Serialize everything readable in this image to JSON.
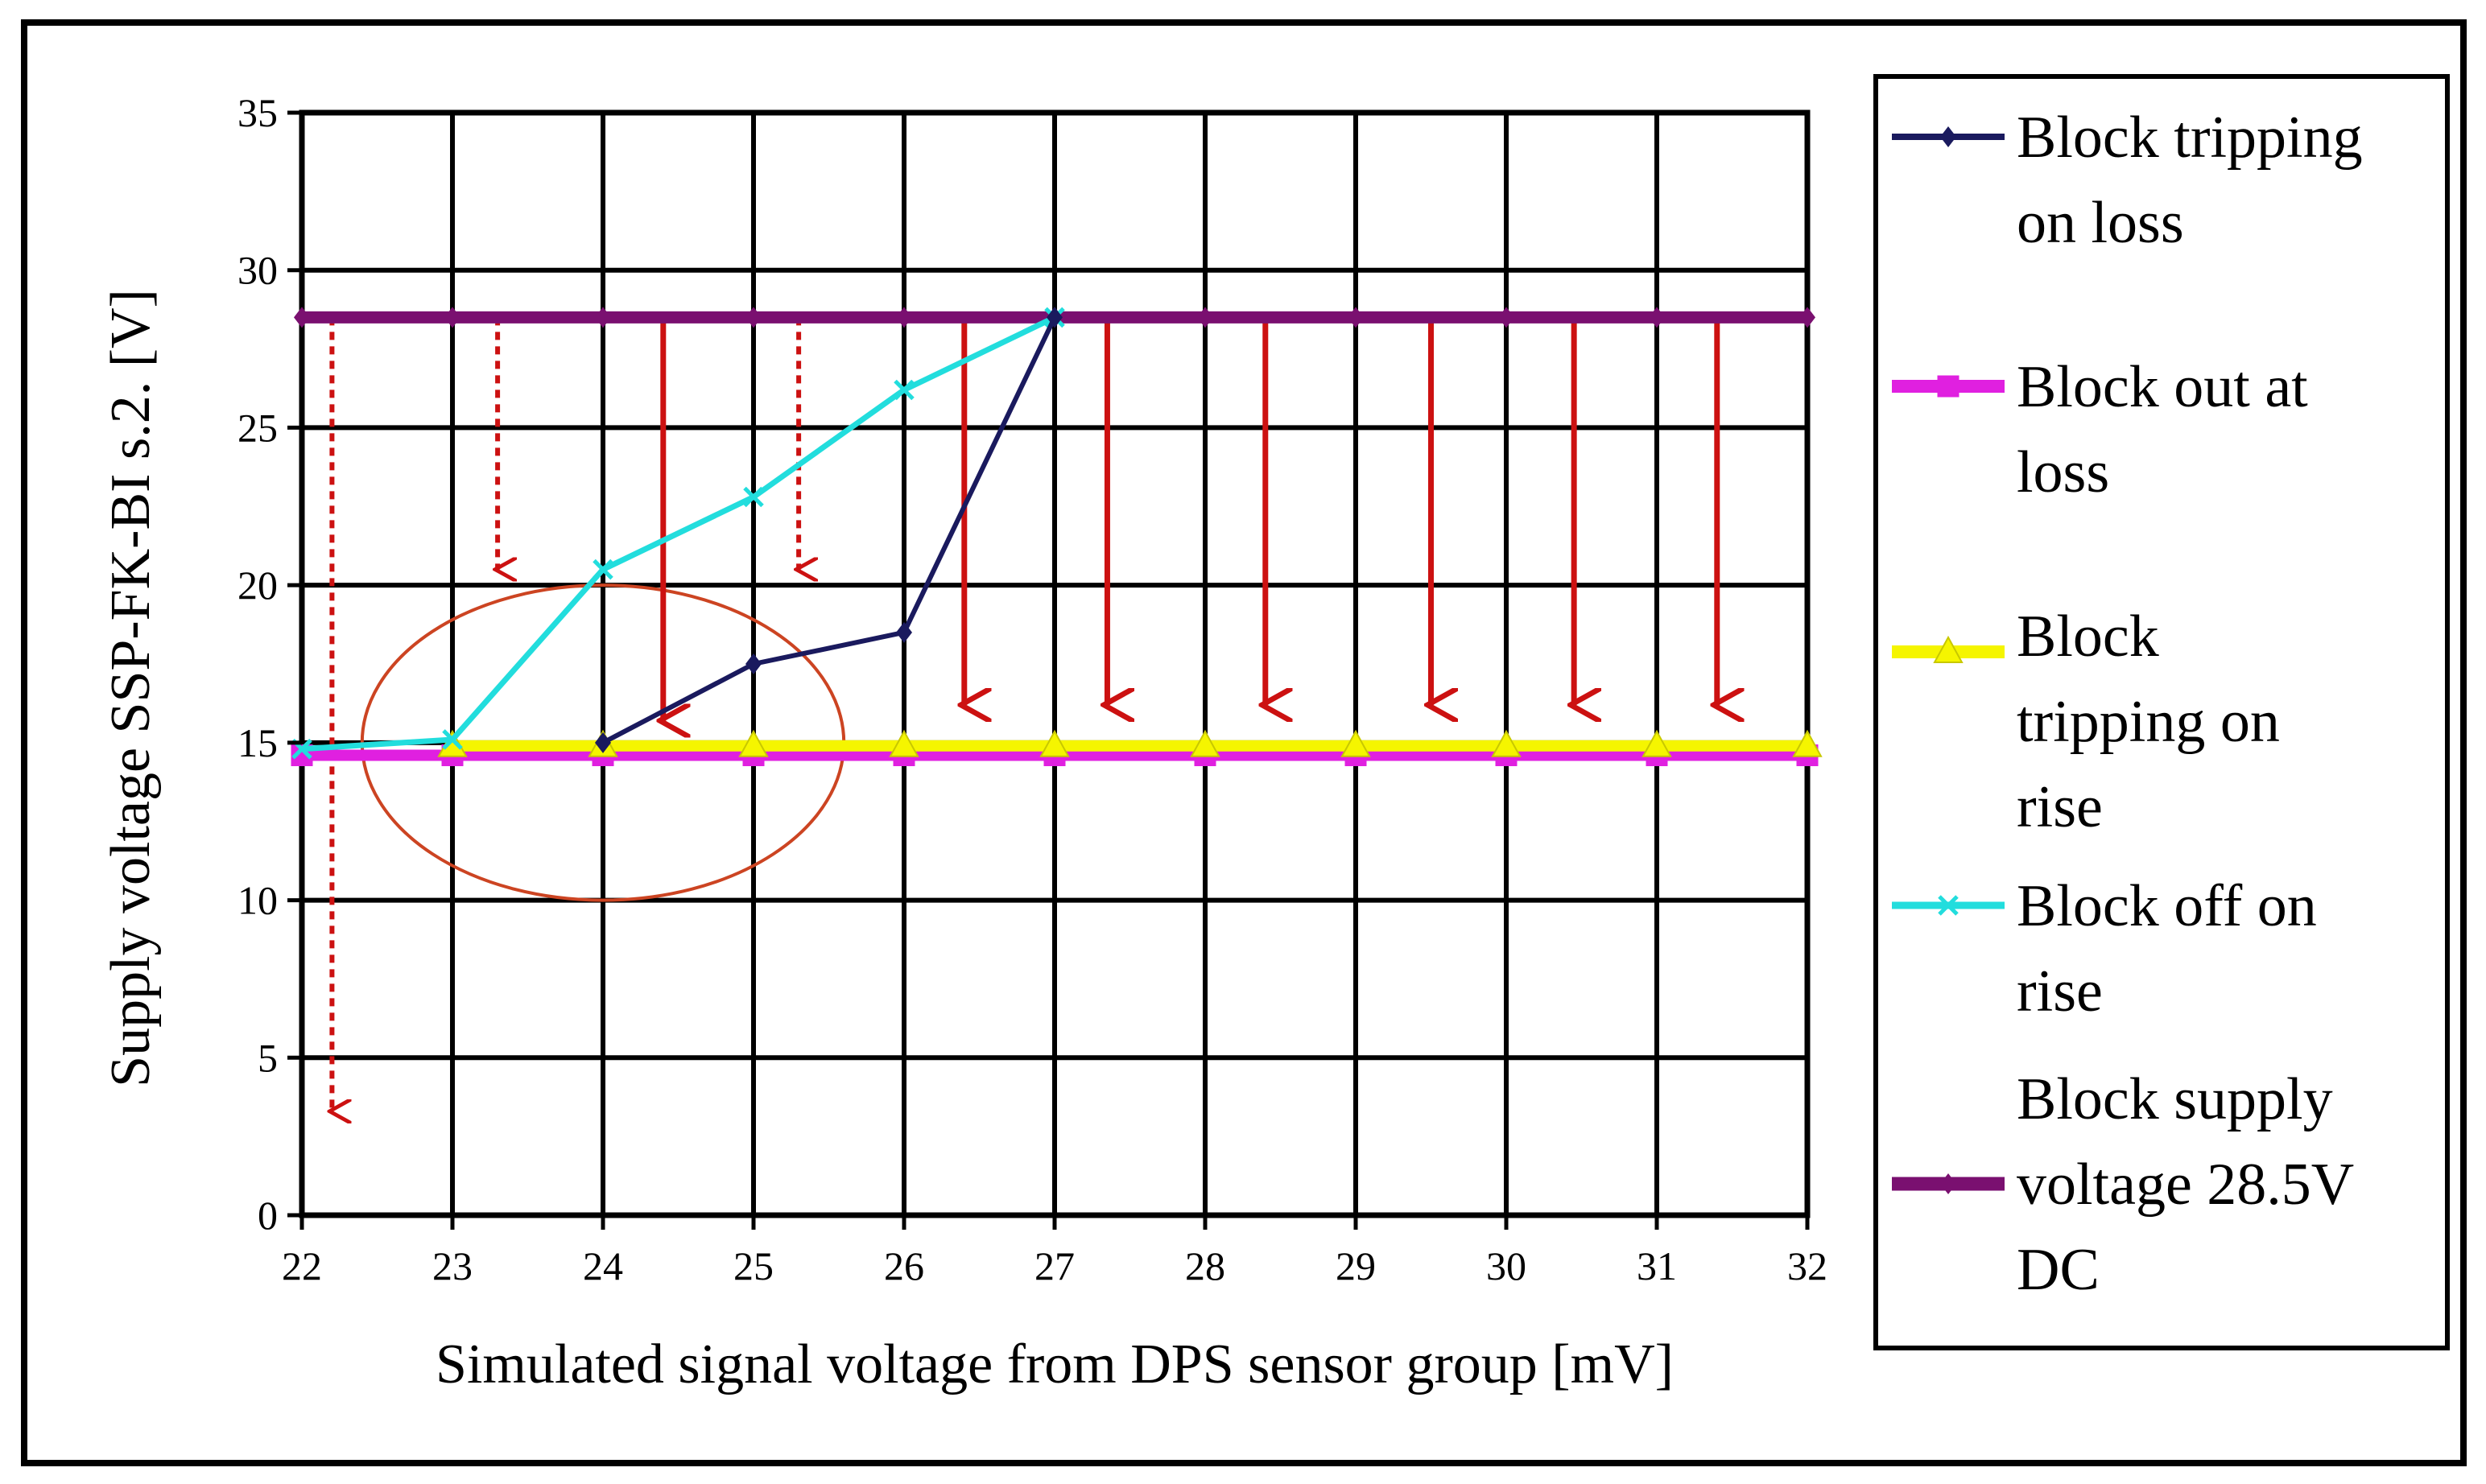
{
  "chart_data": {
    "type": "line",
    "title": "",
    "xlabel": "Simulated signal voltage from DPS sensor group [mV]",
    "ylabel": "Supply voltage SSP-FK-BI s.2. [V]",
    "xlim": [
      22,
      32
    ],
    "ylim": [
      0,
      35
    ],
    "x_ticks": [
      22,
      23,
      24,
      25,
      26,
      27,
      28,
      29,
      30,
      31,
      32
    ],
    "y_ticks": [
      0,
      5,
      10,
      15,
      20,
      25,
      30,
      35
    ],
    "grid": true,
    "legend_position": "right",
    "series": [
      {
        "name": "Block tripping on loss",
        "color": "#1a1a5e",
        "marker": "diamond",
        "x": [
          24,
          25,
          26,
          27
        ],
        "y": [
          15,
          17.5,
          18.5,
          28.5
        ]
      },
      {
        "name": "Block out at loss",
        "color": "#e020e0",
        "marker": "square",
        "x": [
          22,
          23,
          24,
          25,
          26,
          27,
          28,
          29,
          30,
          31,
          32
        ],
        "y": [
          14.6,
          14.6,
          14.6,
          14.6,
          14.6,
          14.6,
          14.6,
          14.6,
          14.6,
          14.6,
          14.6
        ]
      },
      {
        "name": "Block tripping on rise",
        "color": "#f5f500",
        "marker": "triangle",
        "x": [
          23,
          24,
          25,
          26,
          27,
          28,
          29,
          30,
          31,
          32
        ],
        "y": [
          14.9,
          14.9,
          14.9,
          14.9,
          14.9,
          14.9,
          14.9,
          14.9,
          14.9,
          14.9
        ]
      },
      {
        "name": "Block off on rise",
        "color": "#22dddd",
        "marker": "x",
        "x": [
          22,
          23,
          24,
          25,
          26,
          27
        ],
        "y": [
          14.8,
          15.1,
          20.5,
          22.8,
          26.2,
          28.5
        ]
      },
      {
        "name": "Block supply voltage 28.5V DC",
        "color": "#7a1070",
        "marker": "diamond",
        "x": [
          22,
          23,
          24,
          25,
          26,
          27,
          28,
          29,
          30,
          31,
          32
        ],
        "y": [
          28.5,
          28.5,
          28.5,
          28.5,
          28.5,
          28.5,
          28.5,
          28.5,
          28.5,
          28.5,
          28.5
        ]
      }
    ],
    "annotations": {
      "arrow_color": "#cc1111",
      "solid_arrows": [
        {
          "x": 24.4,
          "y_from": 28.5,
          "y_to": 15.7
        },
        {
          "x": 26.4,
          "y_from": 28.5,
          "y_to": 16.2
        },
        {
          "x": 27.35,
          "y_from": 28.5,
          "y_to": 16.2
        },
        {
          "x": 28.4,
          "y_from": 28.5,
          "y_to": 16.2
        },
        {
          "x": 29.5,
          "y_from": 28.5,
          "y_to": 16.2
        },
        {
          "x": 30.45,
          "y_from": 28.5,
          "y_to": 16.2
        },
        {
          "x": 31.4,
          "y_from": 28.5,
          "y_to": 16.2
        }
      ],
      "dashed_arrows": [
        {
          "x": 22.2,
          "y_from": 28.5,
          "y_to": 3.3
        },
        {
          "x": 23.3,
          "y_from": 28.5,
          "y_to": 20.5
        },
        {
          "x": 25.3,
          "y_from": 28.5,
          "y_to": 20.5
        }
      ],
      "ellipse": {
        "cx": 24.0,
        "cy": 15.0,
        "rx": 1.6,
        "ry": 5.0,
        "color": "#cc4422"
      }
    },
    "legend_lines": [
      [
        "Block tripping",
        "on loss"
      ],
      [
        "Block out at",
        "loss"
      ],
      [
        "Block",
        "tripping on",
        "rise"
      ],
      [
        "Block off on",
        "rise"
      ],
      [
        "Block supply",
        "voltage 28.5V",
        "DC"
      ]
    ]
  }
}
